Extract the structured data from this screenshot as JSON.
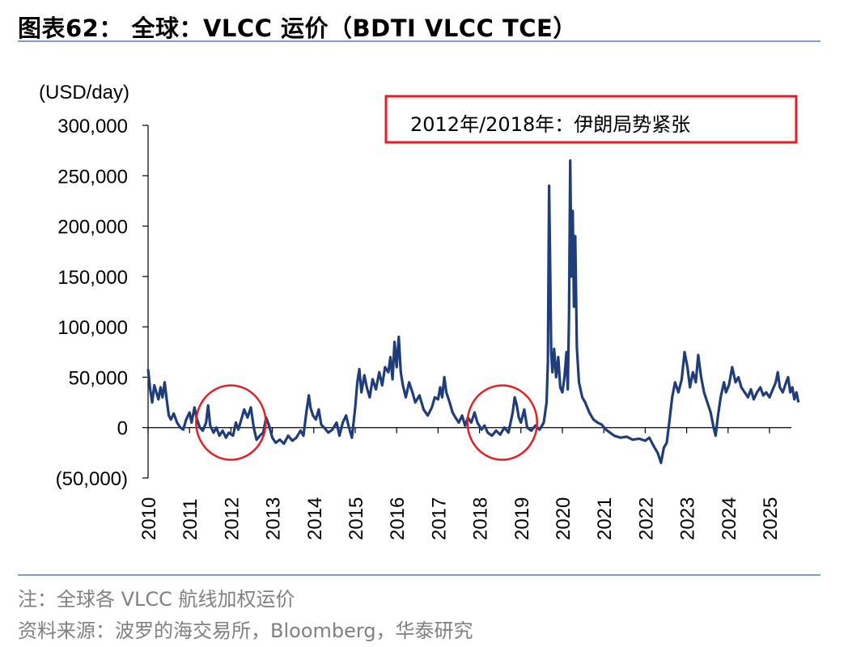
{
  "figure": {
    "title": "图表62： 全球：VLCC 运价（BDTI VLCC TCE）",
    "note": "注：全球各 VLCC 航线加权运价",
    "source": "资料来源：波罗的海交易所，Bloomberg，华泰研究"
  },
  "chart_data": {
    "type": "line",
    "title": "全球：VLCC 运价（BDTI VLCC TCE）",
    "unit_label": "(USD/day)",
    "xlabel": "",
    "ylabel": "(USD/day)",
    "ylim": [
      -50000,
      300000
    ],
    "xlim": [
      2010.0,
      2025.75
    ],
    "y_ticks": [
      {
        "value": 300000,
        "label": "300,000"
      },
      {
        "value": 250000,
        "label": "250,000"
      },
      {
        "value": 200000,
        "label": "200,000"
      },
      {
        "value": 150000,
        "label": "150,000"
      },
      {
        "value": 100000,
        "label": "100,000"
      },
      {
        "value": 50000,
        "label": "50,000"
      },
      {
        "value": 0,
        "label": "0"
      },
      {
        "value": -50000,
        "label": "(50,000)"
      }
    ],
    "x_ticks": [
      "2010",
      "2011",
      "2012",
      "2013",
      "2014",
      "2015",
      "2016",
      "2017",
      "2018",
      "2019",
      "2020",
      "2021",
      "2022",
      "2023",
      "2024",
      "2025"
    ],
    "grid": false,
    "legend": "none",
    "line_color": "#1f3d7a",
    "annotation": {
      "text": "2012年/2018年：伊朗局势紧张",
      "box_color": "#e31e24",
      "highlight_periods": [
        {
          "center_x": 2012.0,
          "center_y": 5000
        },
        {
          "center_x": 2018.55,
          "center_y": 5000
        }
      ]
    },
    "series": [
      {
        "name": "",
        "points": [
          [
            2010.0,
            58000
          ],
          [
            2010.05,
            38000
          ],
          [
            2010.1,
            25000
          ],
          [
            2010.15,
            42000
          ],
          [
            2010.2,
            35000
          ],
          [
            2010.25,
            28000
          ],
          [
            2010.3,
            40000
          ],
          [
            2010.35,
            30000
          ],
          [
            2010.4,
            45000
          ],
          [
            2010.45,
            28000
          ],
          [
            2010.5,
            12000
          ],
          [
            2010.55,
            8000
          ],
          [
            2010.62,
            14000
          ],
          [
            2010.7,
            5000
          ],
          [
            2010.78,
            0
          ],
          [
            2010.85,
            -2000
          ],
          [
            2010.92,
            8000
          ],
          [
            2011.0,
            15000
          ],
          [
            2011.05,
            5000
          ],
          [
            2011.12,
            20000
          ],
          [
            2011.18,
            8000
          ],
          [
            2011.25,
            0
          ],
          [
            2011.32,
            -3000
          ],
          [
            2011.4,
            5000
          ],
          [
            2011.45,
            22000
          ],
          [
            2011.5,
            2000
          ],
          [
            2011.58,
            -5000
          ],
          [
            2011.65,
            0
          ],
          [
            2011.72,
            -8000
          ],
          [
            2011.8,
            -3000
          ],
          [
            2011.88,
            -10000
          ],
          [
            2011.95,
            -5000
          ],
          [
            2012.05,
            -8000
          ],
          [
            2012.12,
            5000
          ],
          [
            2012.18,
            -2000
          ],
          [
            2012.25,
            8000
          ],
          [
            2012.32,
            18000
          ],
          [
            2012.4,
            10000
          ],
          [
            2012.48,
            20000
          ],
          [
            2012.55,
            0
          ],
          [
            2012.62,
            -12000
          ],
          [
            2012.7,
            -8000
          ],
          [
            2012.78,
            -5000
          ],
          [
            2012.85,
            10000
          ],
          [
            2012.92,
            2000
          ],
          [
            2013.0,
            -10000
          ],
          [
            2013.08,
            -15000
          ],
          [
            2013.18,
            -12000
          ],
          [
            2013.28,
            -16000
          ],
          [
            2013.38,
            -8000
          ],
          [
            2013.48,
            -13000
          ],
          [
            2013.58,
            -10000
          ],
          [
            2013.68,
            -3000
          ],
          [
            2013.75,
            -8000
          ],
          [
            2013.82,
            15000
          ],
          [
            2013.88,
            32000
          ],
          [
            2013.92,
            20000
          ],
          [
            2013.98,
            12000
          ],
          [
            2014.05,
            8000
          ],
          [
            2014.12,
            18000
          ],
          [
            2014.18,
            3000
          ],
          [
            2014.25,
            0
          ],
          [
            2014.35,
            -5000
          ],
          [
            2014.45,
            -2000
          ],
          [
            2014.55,
            5000
          ],
          [
            2014.62,
            -8000
          ],
          [
            2014.7,
            5000
          ],
          [
            2014.78,
            12000
          ],
          [
            2014.85,
            0
          ],
          [
            2014.92,
            -10000
          ],
          [
            2015.0,
            20000
          ],
          [
            2015.05,
            45000
          ],
          [
            2015.1,
            58000
          ],
          [
            2015.15,
            35000
          ],
          [
            2015.22,
            52000
          ],
          [
            2015.28,
            40000
          ],
          [
            2015.35,
            30000
          ],
          [
            2015.42,
            48000
          ],
          [
            2015.5,
            38000
          ],
          [
            2015.58,
            55000
          ],
          [
            2015.65,
            42000
          ],
          [
            2015.72,
            60000
          ],
          [
            2015.8,
            55000
          ],
          [
            2015.85,
            70000
          ],
          [
            2015.9,
            48000
          ],
          [
            2015.95,
            85000
          ],
          [
            2016.0,
            60000
          ],
          [
            2016.05,
            90000
          ],
          [
            2016.1,
            55000
          ],
          [
            2016.15,
            42000
          ],
          [
            2016.22,
            30000
          ],
          [
            2016.3,
            45000
          ],
          [
            2016.38,
            35000
          ],
          [
            2016.45,
            25000
          ],
          [
            2016.55,
            32000
          ],
          [
            2016.65,
            18000
          ],
          [
            2016.75,
            12000
          ],
          [
            2016.85,
            20000
          ],
          [
            2016.92,
            30000
          ],
          [
            2017.0,
            28000
          ],
          [
            2017.05,
            40000
          ],
          [
            2017.1,
            30000
          ],
          [
            2017.15,
            50000
          ],
          [
            2017.2,
            35000
          ],
          [
            2017.28,
            25000
          ],
          [
            2017.35,
            15000
          ],
          [
            2017.42,
            10000
          ],
          [
            2017.5,
            5000
          ],
          [
            2017.58,
            12000
          ],
          [
            2017.65,
            2000
          ],
          [
            2017.72,
            10000
          ],
          [
            2017.8,
            5000
          ],
          [
            2017.88,
            15000
          ],
          [
            2017.95,
            5000
          ],
          [
            2018.05,
            -2000
          ],
          [
            2018.12,
            2000
          ],
          [
            2018.2,
            -5000
          ],
          [
            2018.3,
            -8000
          ],
          [
            2018.4,
            -3000
          ],
          [
            2018.5,
            -7000
          ],
          [
            2018.6,
            0
          ],
          [
            2018.7,
            -5000
          ],
          [
            2018.75,
            5000
          ],
          [
            2018.8,
            15000
          ],
          [
            2018.85,
            30000
          ],
          [
            2018.9,
            22000
          ],
          [
            2018.95,
            10000
          ],
          [
            2019.0,
            5000
          ],
          [
            2019.08,
            18000
          ],
          [
            2019.15,
            0
          ],
          [
            2019.25,
            -3000
          ],
          [
            2019.35,
            2000
          ],
          [
            2019.45,
            -2000
          ],
          [
            2019.55,
            5000
          ],
          [
            2019.62,
            25000
          ],
          [
            2019.65,
            65000
          ],
          [
            2019.68,
            240000
          ],
          [
            2019.7,
            180000
          ],
          [
            2019.73,
            75000
          ],
          [
            2019.76,
            55000
          ],
          [
            2019.8,
            78000
          ],
          [
            2019.85,
            50000
          ],
          [
            2019.9,
            70000
          ],
          [
            2019.95,
            40000
          ],
          [
            2020.0,
            35000
          ],
          [
            2020.05,
            50000
          ],
          [
            2020.1,
            75000
          ],
          [
            2020.13,
            38000
          ],
          [
            2020.16,
            110000
          ],
          [
            2020.19,
            265000
          ],
          [
            2020.22,
            150000
          ],
          [
            2020.25,
            215000
          ],
          [
            2020.28,
            120000
          ],
          [
            2020.31,
            190000
          ],
          [
            2020.35,
            80000
          ],
          [
            2020.4,
            45000
          ],
          [
            2020.48,
            30000
          ],
          [
            2020.55,
            25000
          ],
          [
            2020.65,
            15000
          ],
          [
            2020.75,
            8000
          ],
          [
            2020.85,
            5000
          ],
          [
            2020.95,
            3000
          ],
          [
            2021.05,
            -2000
          ],
          [
            2021.15,
            -5000
          ],
          [
            2021.25,
            -8000
          ],
          [
            2021.4,
            -10000
          ],
          [
            2021.55,
            -9000
          ],
          [
            2021.7,
            -12000
          ],
          [
            2021.85,
            -11000
          ],
          [
            2022.0,
            -13000
          ],
          [
            2022.1,
            -10000
          ],
          [
            2022.2,
            -18000
          ],
          [
            2022.3,
            -25000
          ],
          [
            2022.38,
            -35000
          ],
          [
            2022.45,
            -20000
          ],
          [
            2022.52,
            -15000
          ],
          [
            2022.58,
            5000
          ],
          [
            2022.65,
            30000
          ],
          [
            2022.72,
            45000
          ],
          [
            2022.8,
            35000
          ],
          [
            2022.88,
            48000
          ],
          [
            2022.95,
            75000
          ],
          [
            2023.02,
            60000
          ],
          [
            2023.08,
            40000
          ],
          [
            2023.15,
            55000
          ],
          [
            2023.22,
            45000
          ],
          [
            2023.28,
            72000
          ],
          [
            2023.35,
            50000
          ],
          [
            2023.42,
            35000
          ],
          [
            2023.5,
            25000
          ],
          [
            2023.58,
            15000
          ],
          [
            2023.65,
            0
          ],
          [
            2023.7,
            -8000
          ],
          [
            2023.75,
            10000
          ],
          [
            2023.82,
            30000
          ],
          [
            2023.9,
            45000
          ],
          [
            2023.95,
            35000
          ],
          [
            2024.02,
            42000
          ],
          [
            2024.1,
            60000
          ],
          [
            2024.18,
            45000
          ],
          [
            2024.25,
            50000
          ],
          [
            2024.32,
            40000
          ],
          [
            2024.4,
            35000
          ],
          [
            2024.48,
            30000
          ],
          [
            2024.55,
            38000
          ],
          [
            2024.62,
            28000
          ],
          [
            2024.7,
            35000
          ],
          [
            2024.78,
            40000
          ],
          [
            2024.85,
            32000
          ],
          [
            2024.92,
            35000
          ],
          [
            2025.0,
            30000
          ],
          [
            2025.08,
            38000
          ],
          [
            2025.15,
            45000
          ],
          [
            2025.2,
            55000
          ],
          [
            2025.25,
            40000
          ],
          [
            2025.32,
            35000
          ],
          [
            2025.4,
            45000
          ],
          [
            2025.45,
            50000
          ],
          [
            2025.5,
            35000
          ],
          [
            2025.55,
            40000
          ],
          [
            2025.6,
            28000
          ],
          [
            2025.65,
            35000
          ],
          [
            2025.7,
            25000
          ]
        ]
      }
    ]
  }
}
